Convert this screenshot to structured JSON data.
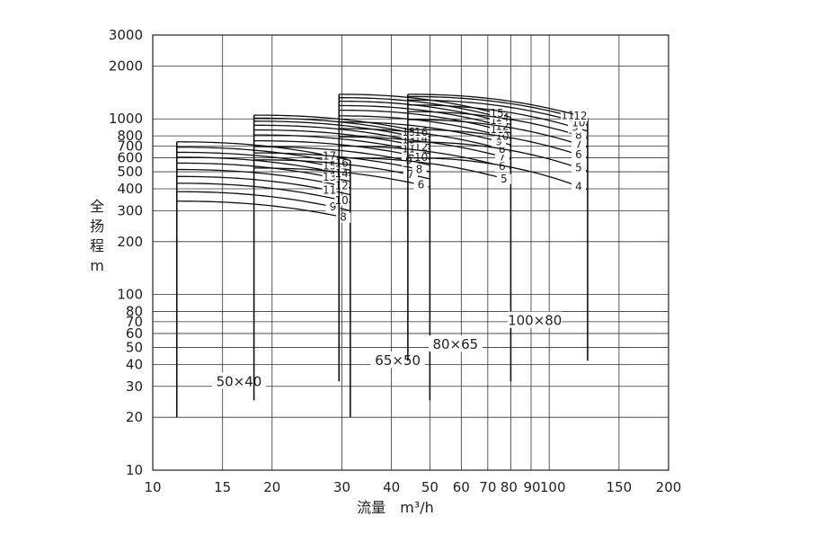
{
  "chart_data": {
    "type": "line",
    "xlabel": "流量　m³/h",
    "ylabel": "全扬程 m",
    "x_scale": "log",
    "y_scale": "log",
    "xlim": [
      10,
      200
    ],
    "ylim": [
      10,
      3000
    ],
    "grid": true,
    "x_ticks": [
      {
        "value": 10,
        "label": "10"
      },
      {
        "value": 15,
        "label": "15"
      },
      {
        "value": 20,
        "label": "20"
      },
      {
        "value": 30,
        "label": "30"
      },
      {
        "value": 40,
        "label": "40"
      },
      {
        "value": 50,
        "label": "50"
      },
      {
        "value": 60,
        "label": "60"
      },
      {
        "value": 70,
        "label": "70"
      },
      {
        "value": 80,
        "label": "80"
      },
      {
        "value": 90,
        "label": "90"
      },
      {
        "value": 100,
        "label": "100"
      },
      {
        "value": 150,
        "label": "150"
      },
      {
        "value": 200,
        "label": "200"
      }
    ],
    "y_ticks": [
      {
        "value": 10,
        "label": "10"
      },
      {
        "value": 20,
        "label": "20"
      },
      {
        "value": 30,
        "label": "30"
      },
      {
        "value": 40,
        "label": "40"
      },
      {
        "value": 50,
        "label": "50"
      },
      {
        "value": 60,
        "label": "60"
      },
      {
        "value": 70,
        "label": "70"
      },
      {
        "value": 80,
        "label": "80"
      },
      {
        "value": 100,
        "label": "100"
      },
      {
        "value": 200,
        "label": "200"
      },
      {
        "value": 300,
        "label": "300"
      },
      {
        "value": 400,
        "label": "400"
      },
      {
        "value": 500,
        "label": "500"
      },
      {
        "value": 600,
        "label": "600"
      },
      {
        "value": 700,
        "label": "700"
      },
      {
        "value": 800,
        "label": "800"
      },
      {
        "value": 1000,
        "label": "1000"
      },
      {
        "value": 2000,
        "label": "2000"
      },
      {
        "value": 3000,
        "label": "3000"
      }
    ],
    "models": [
      {
        "name": "50×40",
        "q_min": 11.5,
        "q_max": 31.5,
        "base_head": 20,
        "label_q": 16.5,
        "label_h": 32,
        "stages": [
          8,
          9,
          10,
          11,
          12,
          13,
          14,
          15,
          16,
          17
        ],
        "head_at_qmin": [
          340,
          385,
          430,
          470,
          515,
          560,
          605,
          645,
          690,
          740
        ],
        "head_at_qmax": [
          270,
          300,
          335,
          370,
          405,
          440,
          475,
          510,
          545,
          580
        ],
        "label_dq": [
          0.96,
          0.9,
          0.95,
          0.88,
          0.95,
          0.88,
          0.95,
          0.88,
          0.95,
          0.88
        ]
      },
      {
        "name": "65×50",
        "q_min": 18,
        "q_max": 50,
        "base_head": 25,
        "label_q": 41.5,
        "label_h": 42,
        "stages": [
          6,
          7,
          8,
          9,
          10,
          11,
          12,
          13,
          14,
          15,
          16
        ],
        "head_at_qmin": [
          525,
          585,
          640,
          695,
          750,
          810,
          865,
          920,
          970,
          1010,
          1050
        ],
        "head_at_qmax": [
          410,
          455,
          500,
          545,
          590,
          635,
          675,
          715,
          755,
          790,
          820
        ],
        "label_dq": [
          0.95,
          0.89,
          0.94,
          0.88,
          0.95,
          0.88,
          0.95,
          0.88,
          0.95,
          0.88,
          0.95
        ]
      },
      {
        "name": "80×65",
        "q_min": 29.5,
        "q_max": 80,
        "base_head": 32,
        "label_q": 58,
        "label_h": 52,
        "stages": [
          5,
          6,
          7,
          8,
          9,
          10,
          11,
          12,
          13,
          14,
          15
        ],
        "head_at_qmin": [
          600,
          700,
          790,
          880,
          960,
          1040,
          1120,
          1190,
          1260,
          1320,
          1380
        ],
        "head_at_qmax": [
          445,
          520,
          590,
          650,
          710,
          770,
          830,
          880,
          930,
          980,
          1020
        ],
        "label_dq": [
          0.96,
          0.95,
          0.95,
          0.95,
          0.93,
          0.95,
          0.92,
          0.95,
          0.92,
          0.95,
          0.92
        ]
      },
      {
        "name": "100×80",
        "q_min": 44,
        "q_max": 125,
        "base_head": 42,
        "label_q": 92,
        "label_h": 71,
        "stages": [
          4,
          5,
          6,
          7,
          8,
          9,
          10,
          11,
          12
        ],
        "head_at_qmin": [
          600,
          740,
          870,
          990,
          1100,
          1200,
          1280,
          1340,
          1380
        ],
        "head_at_qmax": [
          395,
          505,
          600,
          690,
          775,
          850,
          920,
          975,
          1010
        ],
        "label_dq": [
          0.95,
          0.95,
          0.95,
          0.95,
          0.95,
          0.93,
          0.95,
          0.89,
          0.96
        ]
      }
    ]
  }
}
